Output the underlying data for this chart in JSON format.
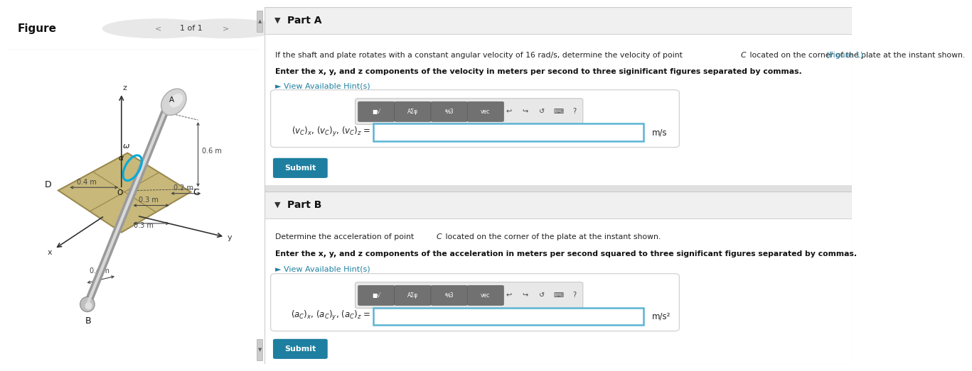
{
  "bg_color": "#ffffff",
  "figure_label": "Figure",
  "nav_label": "1 of 1",
  "part_a_header": "Part A",
  "part_a_text1": "If the shaft and plate rotates with a constant angular velocity of 16 rad/s, determine the velocity of point ",
  "part_a_text1_c": "C",
  "part_a_text1_end": " located on the corner of the plate at the instant shown.",
  "part_a_figure_link": "(Figure 1)",
  "part_a_bold": "Enter the x, y, and z components of the velocity in meters per second to three siginificant figures separated by commas.",
  "part_a_hint": "► View Available Hint(s)",
  "part_a_unit": "m/s",
  "part_b_header": "Part B",
  "part_b_text1": "Determine the acceleration of point ",
  "part_b_text1_c": "C",
  "part_b_text1_end": " located on the corner of the plate at the instant shown.",
  "part_b_bold": "Enter the x, y, and z components of the acceleration in meters per second squared to three significant figures separated by commas.",
  "part_b_hint": "► View Available Hint(s)",
  "part_b_unit": "m/s²",
  "submit_bg": "#1e7fa0",
  "hint_color": "#2080a0",
  "link_color": "#2080a0",
  "input_border": "#5ab4d4",
  "header_bg": "#f0f0f0",
  "separator_bg": "#e0e0e0",
  "content_bg": "#ffffff",
  "toolbar_inner_bg": "#e8e8e8",
  "toolbar_btn_bg": "#717171",
  "panel_border": "#cccccc",
  "plate_color": "#c8b87a",
  "plate_edge": "#9a8a50",
  "shaft_color": "#b0b0b0",
  "omega_color": "#00aadd",
  "dim_color": "#444444",
  "axis_color": "#333333",
  "label_color": "#111111",
  "fig_bg": "#f5f5f5"
}
